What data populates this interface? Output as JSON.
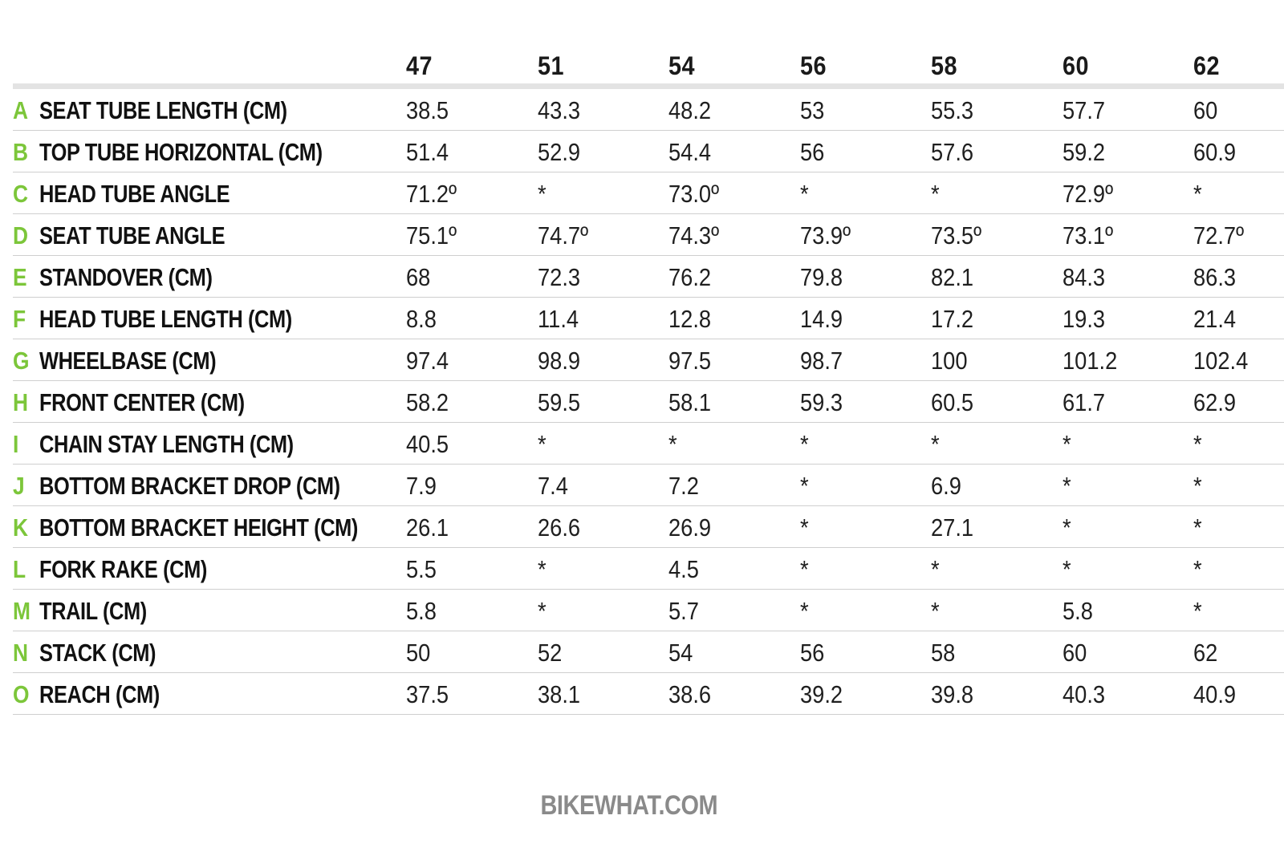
{
  "table": {
    "sizes": [
      "47",
      "51",
      "54",
      "56",
      "58",
      "60",
      "62"
    ],
    "rows": [
      {
        "letter": "A",
        "label": "SEAT TUBE LENGTH (CM)",
        "values": [
          "38.5",
          "43.3",
          "48.2",
          "53",
          "55.3",
          "57.7",
          "60"
        ]
      },
      {
        "letter": "B",
        "label": "TOP TUBE HORIZONTAL (CM)",
        "values": [
          "51.4",
          "52.9",
          "54.4",
          "56",
          "57.6",
          "59.2",
          "60.9"
        ]
      },
      {
        "letter": "C",
        "label": "HEAD TUBE ANGLE",
        "values": [
          "71.2º",
          "*",
          "73.0º",
          "*",
          "*",
          "72.9º",
          "*"
        ]
      },
      {
        "letter": "D",
        "label": "SEAT TUBE ANGLE",
        "values": [
          "75.1º",
          "74.7º",
          "74.3º",
          "73.9º",
          "73.5º",
          "73.1º",
          "72.7º"
        ]
      },
      {
        "letter": "E",
        "label": "STANDOVER (CM)",
        "values": [
          "68",
          "72.3",
          "76.2",
          "79.8",
          "82.1",
          "84.3",
          "86.3"
        ]
      },
      {
        "letter": "F",
        "label": "HEAD TUBE LENGTH (CM)",
        "values": [
          "8.8",
          "11.4",
          "12.8",
          "14.9",
          "17.2",
          "19.3",
          "21.4"
        ]
      },
      {
        "letter": "G",
        "label": "WHEELBASE (CM)",
        "values": [
          "97.4",
          "98.9",
          "97.5",
          "98.7",
          "100",
          "101.2",
          "102.4"
        ]
      },
      {
        "letter": "H",
        "label": "FRONT CENTER (CM)",
        "values": [
          "58.2",
          "59.5",
          "58.1",
          "59.3",
          "60.5",
          "61.7",
          "62.9"
        ]
      },
      {
        "letter": "I",
        "label": "CHAIN STAY LENGTH (CM)",
        "values": [
          "40.5",
          "*",
          "*",
          "*",
          "*",
          "*",
          "*"
        ]
      },
      {
        "letter": "J",
        "label": "BOTTOM BRACKET DROP (CM)",
        "values": [
          "7.9",
          "7.4",
          "7.2",
          "*",
          "6.9",
          "*",
          "*"
        ]
      },
      {
        "letter": "K",
        "label": "BOTTOM BRACKET HEIGHT (CM)",
        "values": [
          "26.1",
          "26.6",
          "26.9",
          "*",
          "27.1",
          "*",
          "*"
        ]
      },
      {
        "letter": "L",
        "label": "FORK RAKE (CM)",
        "values": [
          "5.5",
          "*",
          "4.5",
          "*",
          "*",
          "*",
          "*"
        ]
      },
      {
        "letter": "M",
        "label": "TRAIL (CM)",
        "values": [
          "5.8",
          "*",
          "5.7",
          "*",
          "*",
          "5.8",
          "*"
        ]
      },
      {
        "letter": "N",
        "label": "STACK (CM)",
        "values": [
          "50",
          "52",
          "54",
          "56",
          "58",
          "60",
          "62"
        ]
      },
      {
        "letter": "O",
        "label": "REACH (CM)",
        "values": [
          "37.5",
          "38.1",
          "38.6",
          "39.2",
          "39.8",
          "40.3",
          "40.9"
        ]
      }
    ]
  },
  "watermark": "BIKEWHAT.COM",
  "colors": {
    "letter_accent": "#7cc63a",
    "text": "#111111",
    "watermark": "#8a8a8a",
    "header_rule": "#e3e3e3",
    "row_rule": "#cfcfcf"
  }
}
